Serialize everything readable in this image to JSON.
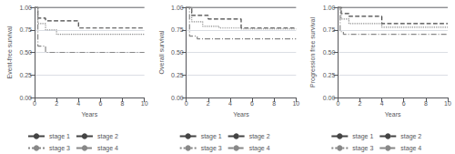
{
  "chart_data": [
    {
      "type": "step",
      "xlabel": "Years",
      "ylabel": "Event-free survival",
      "xlim": [
        0,
        10
      ],
      "ylim": [
        0.0,
        1.0
      ],
      "xticks": [
        0,
        2,
        4,
        6,
        8,
        10
      ],
      "yticks": [
        {
          "value": 0.0,
          "label": "0.00"
        },
        {
          "value": 0.25,
          "label": "0.25"
        },
        {
          "value": 0.5,
          "label": "0.50"
        },
        {
          "value": 0.75,
          "label": "0.75"
        },
        {
          "value": 1.0,
          "label": "1.00"
        }
      ],
      "grid": true,
      "legend": "bottom",
      "series": [
        {
          "name": "stage 1",
          "color": "#444444",
          "line_style": "solid",
          "x": [
            0,
            0.05,
            10
          ],
          "values": [
            1.0,
            1.0,
            1.0
          ]
        },
        {
          "name": "stage 2",
          "color": "#444444",
          "line_style": "dashed",
          "x": [
            0,
            0.3,
            1.0,
            4.0,
            10
          ],
          "values": [
            1.0,
            0.88,
            0.85,
            0.77,
            0.77
          ]
        },
        {
          "name": "stage 3",
          "color": "#888888",
          "line_style": "dotted",
          "x": [
            0,
            0.3,
            1.0,
            2.0,
            10
          ],
          "values": [
            1.0,
            0.82,
            0.75,
            0.7,
            0.7
          ]
        },
        {
          "name": "stage 4",
          "color": "#888888",
          "line_style": "dashdot",
          "x": [
            0,
            0.3,
            1.0,
            10
          ],
          "values": [
            1.0,
            0.57,
            0.5,
            0.5
          ]
        }
      ]
    },
    {
      "type": "step",
      "xlabel": "Years",
      "ylabel": "Overall survival",
      "xlim": [
        0,
        10
      ],
      "ylim": [
        0.0,
        1.0
      ],
      "xticks": [
        0,
        2,
        4,
        6,
        8,
        10
      ],
      "yticks": [
        {
          "value": 0.0,
          "label": "0.00"
        },
        {
          "value": 0.25,
          "label": "0.25"
        },
        {
          "value": 0.5,
          "label": "0.50"
        },
        {
          "value": 0.75,
          "label": "0.75"
        },
        {
          "value": 1.0,
          "label": "1.00"
        }
      ],
      "grid": true,
      "legend": "bottom",
      "series": [
        {
          "name": "stage 1",
          "color": "#444444",
          "line_style": "solid",
          "x": [
            0,
            0.05,
            10
          ],
          "values": [
            1.0,
            1.0,
            1.0
          ]
        },
        {
          "name": "stage 2",
          "color": "#444444",
          "line_style": "dashed",
          "x": [
            0,
            0.5,
            2.0,
            5.0,
            10
          ],
          "values": [
            1.0,
            0.91,
            0.87,
            0.77,
            0.77
          ]
        },
        {
          "name": "stage 3",
          "color": "#888888",
          "line_style": "dotted",
          "x": [
            0,
            0.5,
            1.5,
            3.0,
            5.0,
            10
          ],
          "values": [
            1.0,
            0.84,
            0.79,
            0.77,
            0.76,
            0.76
          ]
        },
        {
          "name": "stage 4",
          "color": "#888888",
          "line_style": "dashdot",
          "x": [
            0,
            0.3,
            1.0,
            10
          ],
          "values": [
            1.0,
            0.68,
            0.65,
            0.65
          ]
        }
      ]
    },
    {
      "type": "step",
      "xlabel": "Years",
      "ylabel": "Progression free survival",
      "xlim": [
        0,
        10
      ],
      "ylim": [
        0.0,
        1.0
      ],
      "xticks": [
        0,
        2,
        4,
        6,
        8,
        10
      ],
      "yticks": [
        {
          "value": 0.0,
          "label": "0.00"
        },
        {
          "value": 0.25,
          "label": "0.25"
        },
        {
          "value": 0.5,
          "label": "0.50"
        },
        {
          "value": 0.75,
          "label": "0.75"
        },
        {
          "value": 1.0,
          "label": "1.00"
        }
      ],
      "grid": true,
      "legend": "bottom",
      "series": [
        {
          "name": "stage 1",
          "color": "#444444",
          "line_style": "solid",
          "x": [
            0,
            0.05,
            10
          ],
          "values": [
            1.0,
            1.0,
            1.0
          ]
        },
        {
          "name": "stage 2",
          "color": "#444444",
          "line_style": "dashed",
          "x": [
            0,
            0.3,
            1.0,
            4.0,
            10
          ],
          "values": [
            1.0,
            0.93,
            0.9,
            0.82,
            0.82
          ]
        },
        {
          "name": "stage 3",
          "color": "#888888",
          "line_style": "dotted",
          "x": [
            0,
            0.3,
            1.0,
            4.0,
            10
          ],
          "values": [
            1.0,
            0.87,
            0.82,
            0.78,
            0.78
          ]
        },
        {
          "name": "stage 4",
          "color": "#888888",
          "line_style": "dashdot",
          "x": [
            0,
            0.2,
            0.5,
            10
          ],
          "values": [
            1.0,
            0.73,
            0.7,
            0.7
          ]
        }
      ]
    }
  ]
}
